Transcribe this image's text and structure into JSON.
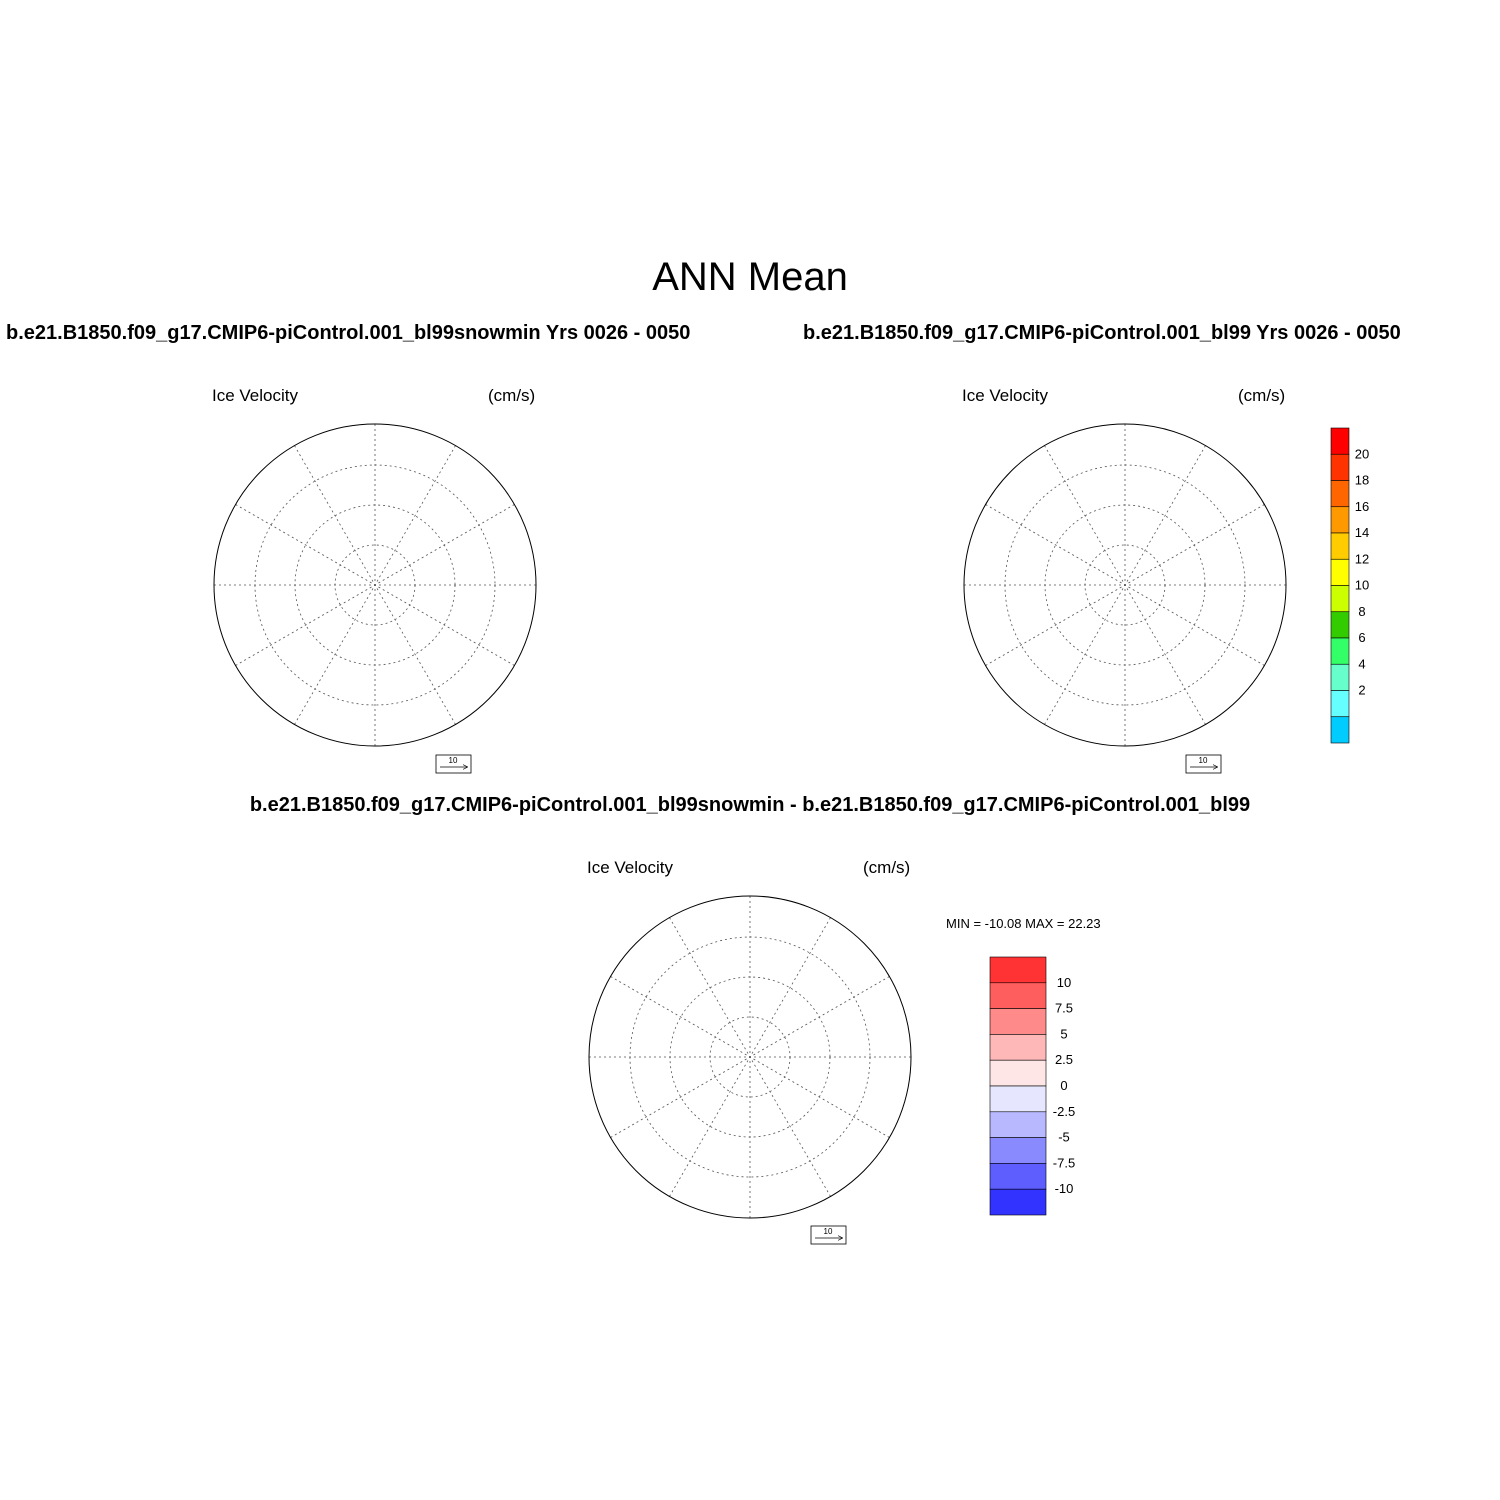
{
  "main_title": "ANN Mean",
  "panels": [
    {
      "title": "b.e21.B1850.f09_g17.CMIP6-piControl.001_bl99snowmin  Yrs 0026 - 0050",
      "left_label": "Ice Velocity",
      "right_label": "(cm/s)",
      "ref_vector_label": "10"
    },
    {
      "title": "b.e21.B1850.f09_g17.CMIP6-piControl.001_bl99  Yrs 0026 - 0050",
      "left_label": "Ice Velocity",
      "right_label": "(cm/s)",
      "ref_vector_label": "10"
    },
    {
      "title": "b.e21.B1850.f09_g17.CMIP6-piControl.001_bl99snowmin - b.e21.B1850.f09_g17.CMIP6-piControl.001_bl99",
      "left_label": "Ice Velocity",
      "right_label": "(cm/s)",
      "ref_vector_label": "10",
      "minmax": "MIN = -10.08 MAX =  22.23"
    }
  ],
  "colorbar_speed": {
    "labels": [
      "20",
      "18",
      "16",
      "14",
      "12",
      "10",
      "8",
      "6",
      "4",
      "2"
    ],
    "colors": [
      "#ff0000",
      "#ff3300",
      "#ff6600",
      "#ff9900",
      "#ffcc00",
      "#ffff00",
      "#ccff00",
      "#33cc00",
      "#33ff66",
      "#66ffcc",
      "#66ffff",
      "#00ccff"
    ]
  },
  "colorbar_diff": {
    "labels": [
      "10",
      "7.5",
      "5",
      "2.5",
      "0",
      "-2.5",
      "-5",
      "-7.5",
      "-10"
    ],
    "colors": [
      "#ff3333",
      "#ff5e5e",
      "#ff8a8a",
      "#ffb8b8",
      "#ffe6e6",
      "#e6e6ff",
      "#b8b8ff",
      "#8a8aff",
      "#5e5eff",
      "#3333ff"
    ]
  },
  "map_colors": {
    "land": "#bebebe",
    "ice_slow": "#33ddff",
    "ice_fast": "#66ff66",
    "ice_max": "#ff3300",
    "diff_pos": "#ffe0e0",
    "diff_neg": "#e6e6ff"
  }
}
